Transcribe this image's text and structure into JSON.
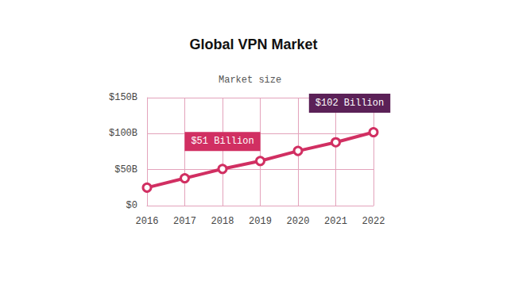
{
  "chart_data": {
    "type": "line",
    "title": "Global VPN Market",
    "subtitle": "Market size",
    "categories": [
      "2016",
      "2017",
      "2018",
      "2019",
      "2020",
      "2021",
      "2022"
    ],
    "values": [
      25,
      38,
      51,
      62,
      76,
      88,
      102
    ],
    "color": "#d12f62",
    "marker": "circle",
    "ylim": [
      0,
      150
    ],
    "yticks": [
      {
        "value": 0,
        "label": "$0"
      },
      {
        "value": 50,
        "label": "$50B"
      },
      {
        "value": 100,
        "label": "$100B"
      },
      {
        "value": 150,
        "label": "$150B"
      }
    ],
    "grid": true,
    "annotations": [
      {
        "x": "2018",
        "text": "$51 Billion"
      },
      {
        "x": "2022",
        "text": "$102 Billion"
      }
    ]
  }
}
